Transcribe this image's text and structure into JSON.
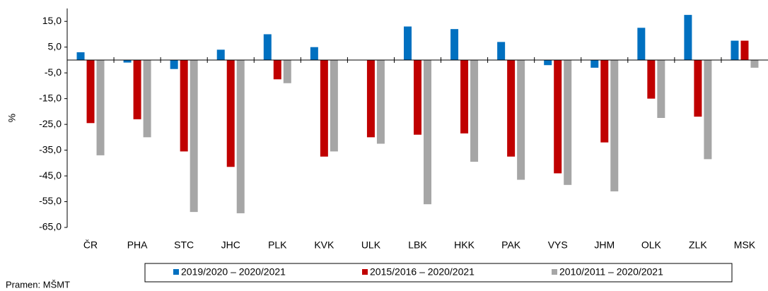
{
  "chart_data": {
    "type": "bar",
    "y_label": "%",
    "source": "Pramen: MŠMT",
    "categories": [
      "ČR",
      "PHA",
      "STC",
      "JHC",
      "PLK",
      "KVK",
      "ULK",
      "LBK",
      "HKK",
      "PAK",
      "VYS",
      "JHM",
      "OLK",
      "ZLK",
      "MSK"
    ],
    "series": [
      {
        "name": "2019/2020 – 2020/2021",
        "color": "#0070c0",
        "values": [
          3,
          -1,
          -3.5,
          4,
          10,
          5,
          0,
          13,
          12,
          7,
          -2,
          -3,
          12.5,
          17.5,
          7.5
        ]
      },
      {
        "name": "2015/2016 – 2020/2021",
        "color": "#c00000",
        "values": [
          -24.5,
          -23,
          -35.5,
          -41.5,
          -7.5,
          -37.5,
          -30,
          -29,
          -28.5,
          -37.5,
          -44,
          -32,
          -15,
          -22,
          7.5
        ]
      },
      {
        "name": "2010/2011 – 2020/2021",
        "color": "#a6a6a6",
        "values": [
          -37,
          -30,
          -59,
          -59.5,
          -9,
          -35.5,
          -32.5,
          -56,
          -39.5,
          -46.5,
          -48.5,
          -51,
          -22.5,
          -38.5,
          -3
        ]
      }
    ],
    "ylim": [
      -65,
      20
    ],
    "yticks": [
      {
        "value": 15,
        "label": "15,0"
      },
      {
        "value": 5,
        "label": "5,0"
      },
      {
        "value": -5,
        "label": "-5,0"
      },
      {
        "value": -15,
        "label": "-15,0"
      },
      {
        "value": -25,
        "label": "-25,0"
      },
      {
        "value": -35,
        "label": "-35,0"
      },
      {
        "value": -45,
        "label": "-45,0"
      },
      {
        "value": -55,
        "label": "-55,0"
      },
      {
        "value": -65,
        "label": "-65,0"
      }
    ],
    "legend": "bottom"
  }
}
